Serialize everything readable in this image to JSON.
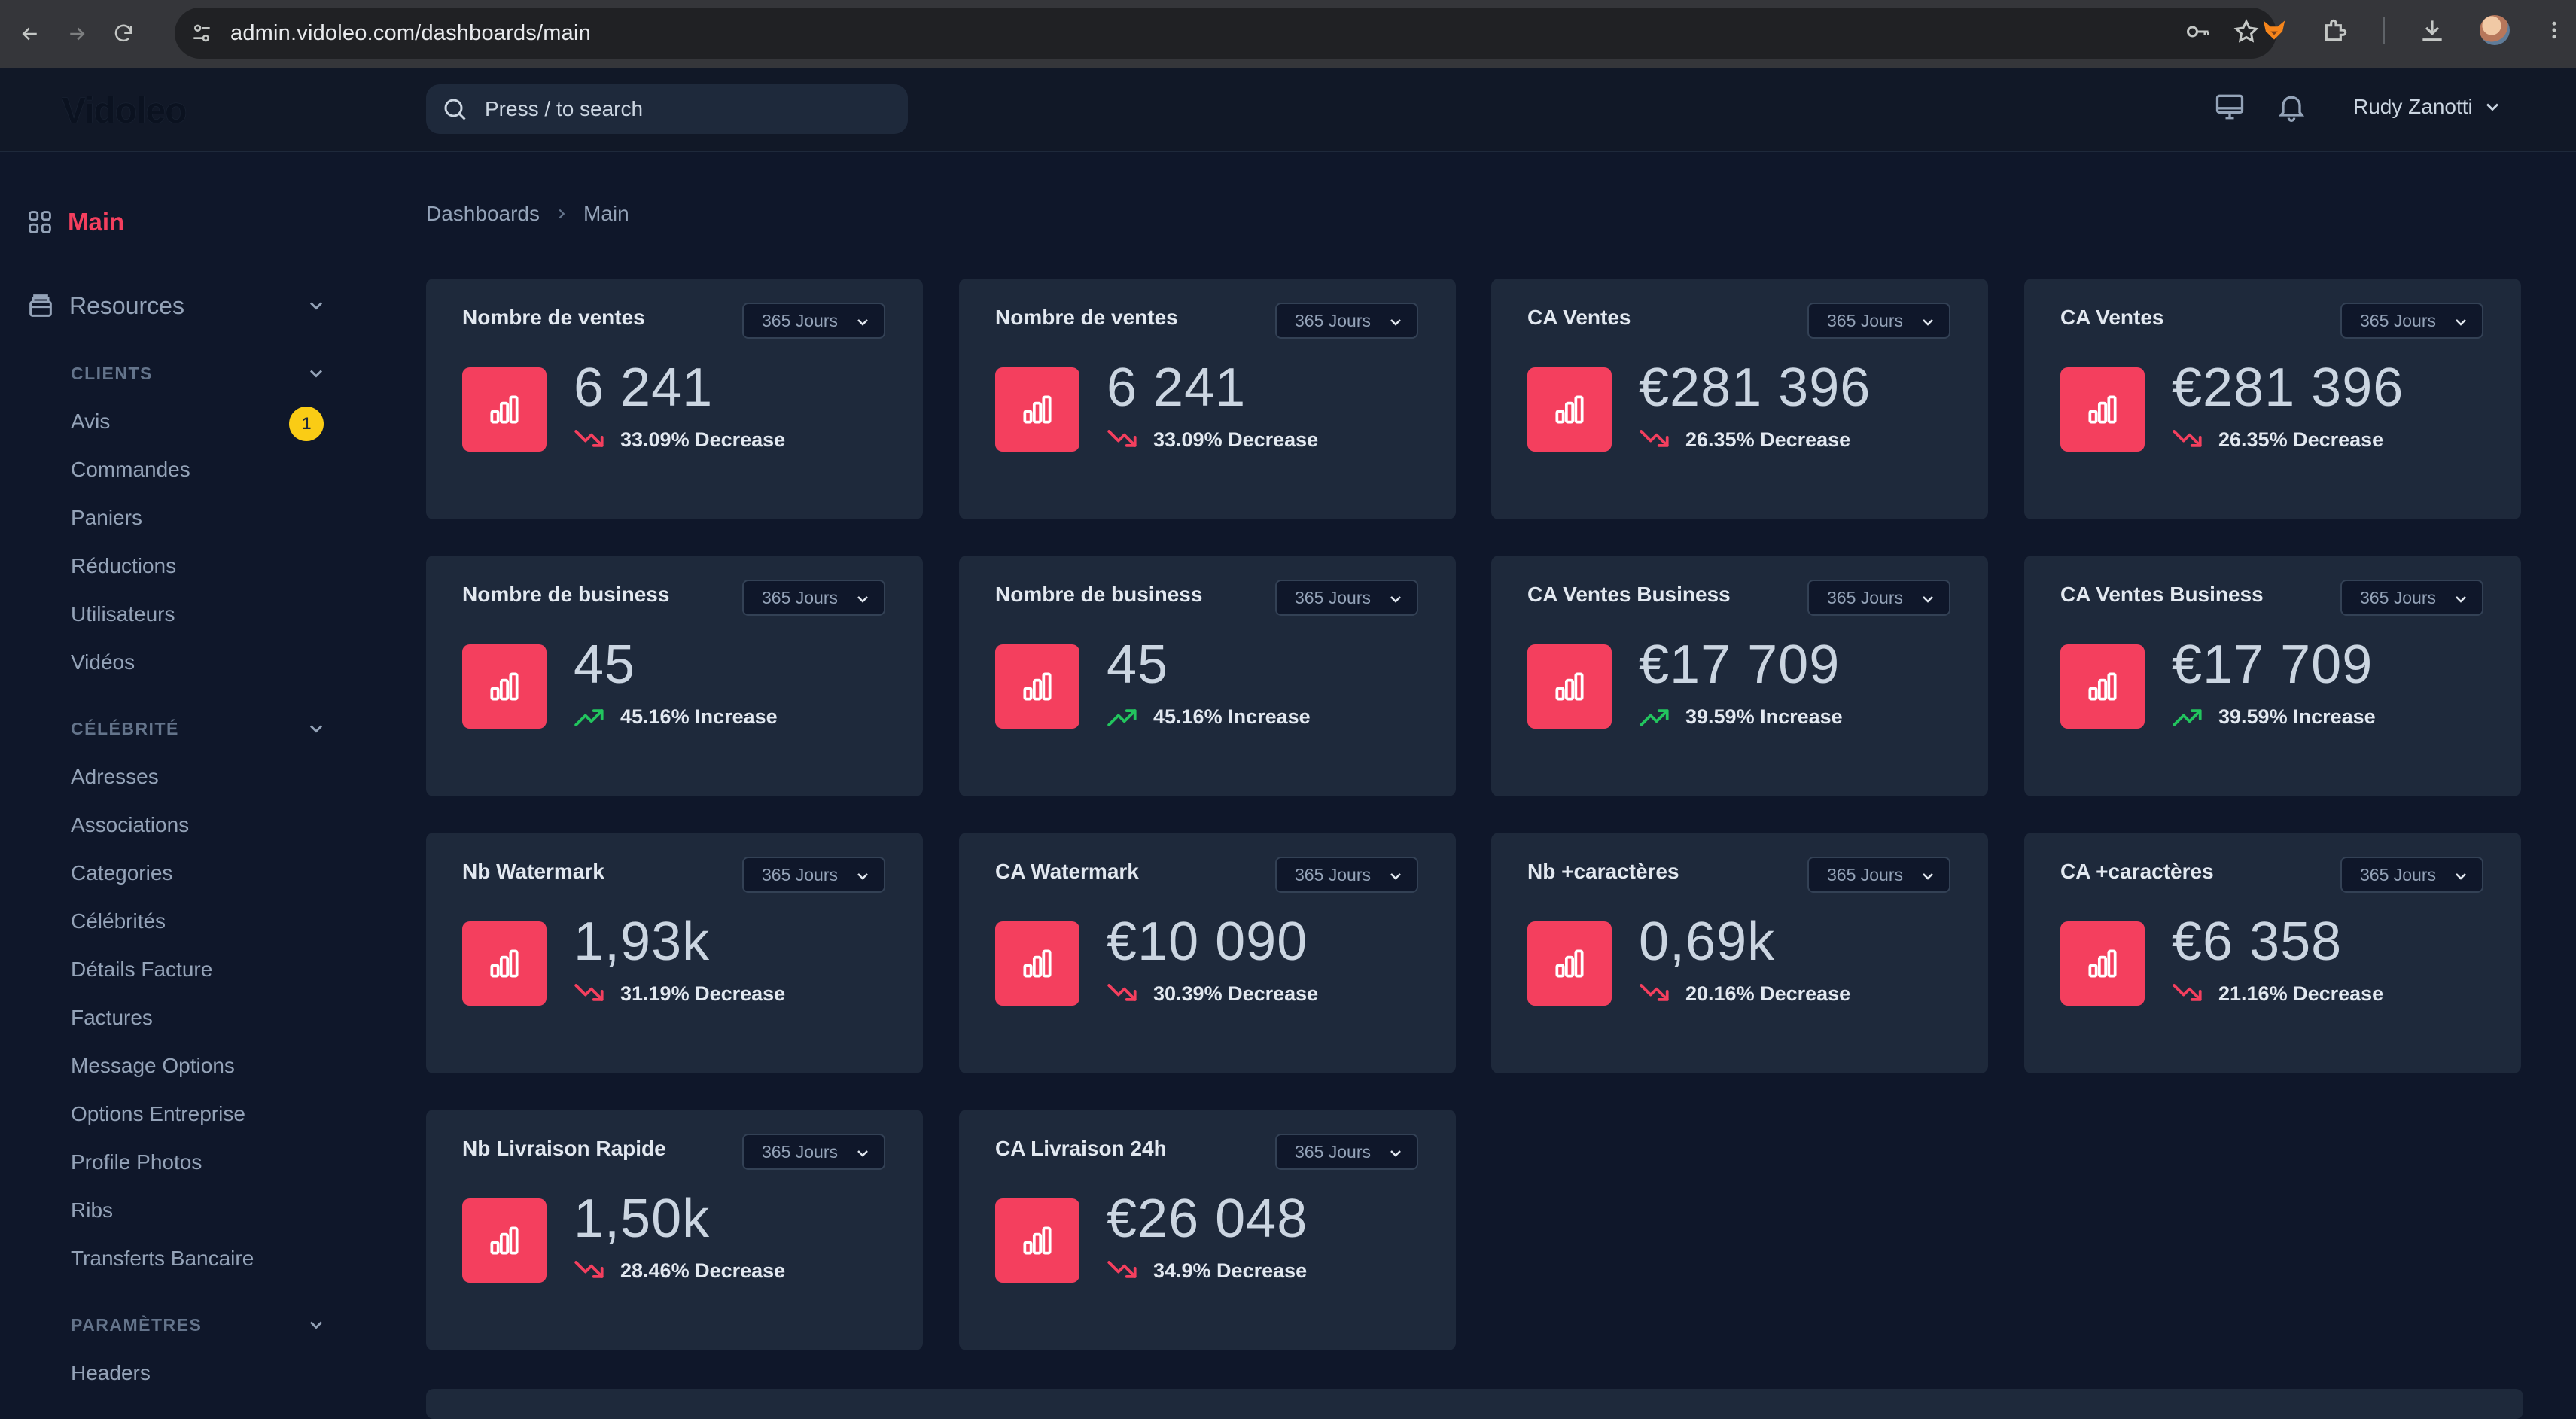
{
  "browser": {
    "url": "admin.vidoleo.com/dashboards/main"
  },
  "header": {
    "logo": "Vidoleo",
    "search_placeholder": "Press / to search",
    "user_name": "Rudy Zanotti"
  },
  "sidebar": {
    "main_label": "Main",
    "resources_label": "Resources",
    "sections": [
      {
        "title": "CLIENTS",
        "items": [
          "Avis",
          "Commandes",
          "Paniers",
          "Réductions",
          "Utilisateurs",
          "Vidéos"
        ]
      },
      {
        "title": "CÉLÉBRITÉ",
        "items": [
          "Adresses",
          "Associations",
          "Categories",
          "Célébrités",
          "Détails Facture",
          "Factures",
          "Message Options",
          "Options Entreprise",
          "Profile Photos",
          "Ribs",
          "Transferts Bancaire"
        ]
      },
      {
        "title": "PARAMÈTRES",
        "items": [
          "Headers"
        ]
      }
    ],
    "avis_badge": "1"
  },
  "breadcrumb": {
    "root": "Dashboards",
    "current": "Main"
  },
  "colors": {
    "accent": "#f43f5e",
    "increase": "#22c55e",
    "decrease": "#f43f5e"
  },
  "cards": [
    {
      "title": "Nombre de ventes",
      "range": "365 Jours",
      "value": "6 241",
      "trend": "33.09% Decrease",
      "direction": "down"
    },
    {
      "title": "Nombre de ventes",
      "range": "365 Jours",
      "value": "6 241",
      "trend": "33.09% Decrease",
      "direction": "down"
    },
    {
      "title": "CA Ventes",
      "range": "365 Jours",
      "value": "€281 396",
      "trend": "26.35% Decrease",
      "direction": "down"
    },
    {
      "title": "CA Ventes",
      "range": "365 Jours",
      "value": "€281 396",
      "trend": "26.35% Decrease",
      "direction": "down"
    },
    {
      "title": "Nombre de business",
      "range": "365 Jours",
      "value": "45",
      "trend": "45.16% Increase",
      "direction": "up"
    },
    {
      "title": "Nombre de business",
      "range": "365 Jours",
      "value": "45",
      "trend": "45.16% Increase",
      "direction": "up"
    },
    {
      "title": "CA Ventes Business",
      "range": "365 Jours",
      "value": "€17 709",
      "trend": "39.59% Increase",
      "direction": "up"
    },
    {
      "title": "CA Ventes Business",
      "range": "365 Jours",
      "value": "€17 709",
      "trend": "39.59% Increase",
      "direction": "up"
    },
    {
      "title": "Nb Watermark",
      "range": "365 Jours",
      "value": "1,93k",
      "trend": "31.19% Decrease",
      "direction": "down"
    },
    {
      "title": "CA Watermark",
      "range": "365 Jours",
      "value": "€10 090",
      "trend": "30.39% Decrease",
      "direction": "down"
    },
    {
      "title": "Nb +caractères",
      "range": "365 Jours",
      "value": "0,69k",
      "trend": "20.16% Decrease",
      "direction": "down"
    },
    {
      "title": "CA +caractères",
      "range": "365 Jours",
      "value": "€6 358",
      "trend": "21.16% Decrease",
      "direction": "down"
    },
    {
      "title": "Nb Livraison Rapide",
      "range": "365 Jours",
      "value": "1,50k",
      "trend": "28.46% Decrease",
      "direction": "down"
    },
    {
      "title": "CA Livraison 24h",
      "range": "365 Jours",
      "value": "€26 048",
      "trend": "34.9% Decrease",
      "direction": "down"
    }
  ]
}
